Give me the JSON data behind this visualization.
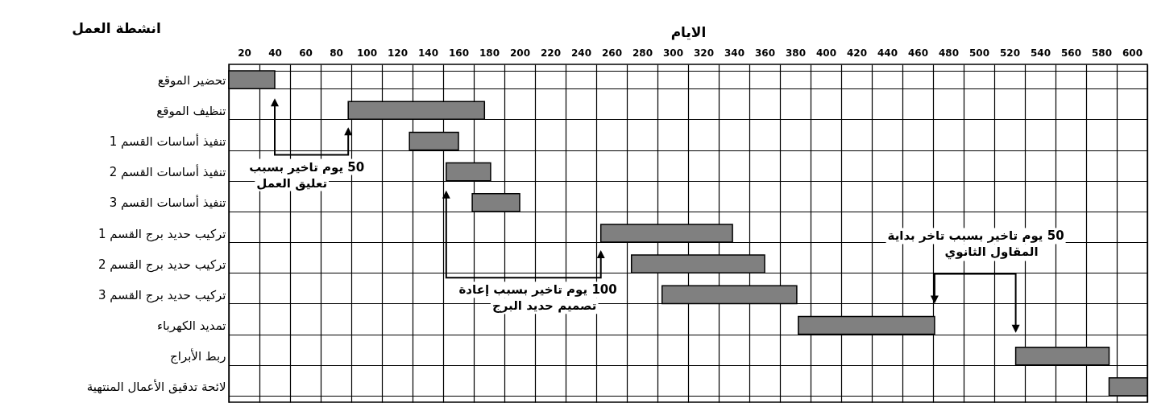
{
  "chart_data": {
    "type": "bar",
    "orientation": "horizontal",
    "xlabel": "الايام",
    "ylabel": "انشطة العمل",
    "categories": [
      "تحضير الموقع",
      "تنظيف الموقع",
      "تنفيذ أساسات القسم 1",
      "تنفيذ أساسات القسم 2",
      "تنفيذ أساسات القسم 3",
      "تركيب حديد برج القسم 1",
      "تركيب حديد برج القسم 2",
      "تركيب حديد برج القسم 3",
      "تمديد الكهرباء",
      "ربط الأبراج",
      "لائحة تدقيق الأعمال المنتهية"
    ],
    "base": [
      10,
      88,
      128,
      152,
      169,
      253,
      273,
      293,
      382,
      524,
      585
    ],
    "values": [
      30,
      89,
      32,
      29,
      31,
      86,
      87,
      88,
      89,
      61,
      25
    ],
    "color": "#808080",
    "xlim": [
      10,
      610
    ],
    "xticks": [
      20,
      40,
      60,
      80,
      100,
      120,
      140,
      160,
      180,
      200,
      220,
      240,
      260,
      280,
      300,
      320,
      340,
      360,
      380,
      400,
      420,
      440,
      460,
      480,
      500,
      520,
      540,
      560,
      580,
      600
    ],
    "grid": true,
    "annotations": [
      "50 يوم تاخير بسبب\nتعليق العمل",
      "100 يوم تاخير بسبب إعادة\nتصميم حديد البرج",
      "50 يوم تاخير بسبب تاخر بداية\nالمقاول الثانوي"
    ]
  }
}
